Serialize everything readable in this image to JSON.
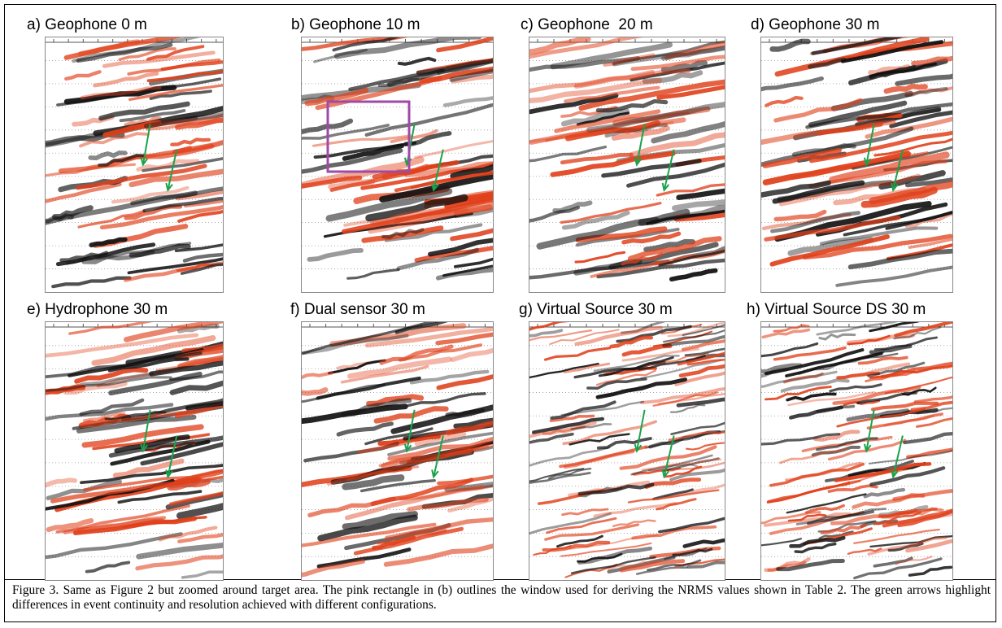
{
  "panels": [
    {
      "label": "a) Geophone 0 m"
    },
    {
      "label": "b) Geophone 10 m"
    },
    {
      "label": "c) Geophone  20 m"
    },
    {
      "label": "d) Geophone 30 m"
    },
    {
      "label": "e) Hydrophone 30 m"
    },
    {
      "label": "f) Dual sensor 30 m"
    },
    {
      "label": "g) Virtual Source 30 m"
    },
    {
      "label": "h) Virtual Source DS 30 m"
    }
  ],
  "caption": "Figure 3. Same as Figure 2 but zoomed around target area. The pink rectangle in (b) outlines the window used for deriving the NRMS values shown in Table 2. The green arrows highlight differences in event continuity and resolution achieved with different configurations."
}
